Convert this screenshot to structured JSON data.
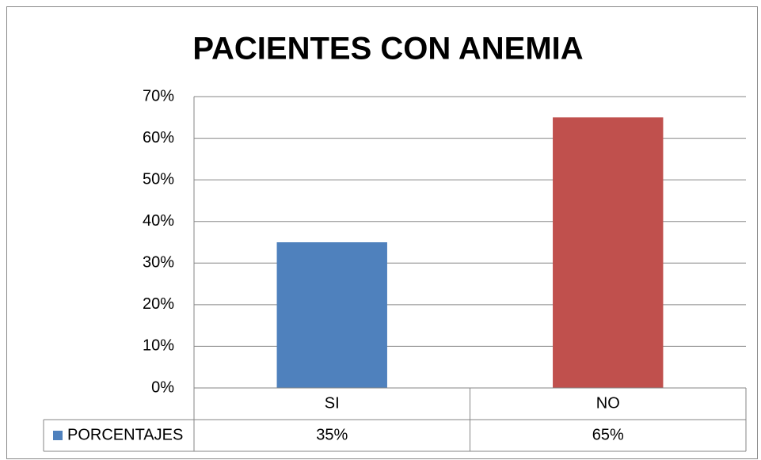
{
  "chart_data": {
    "type": "bar",
    "title": "PACIENTES CON ANEMIA",
    "categories": [
      "SI",
      "NO"
    ],
    "series": [
      {
        "name": "PORCENTAJES",
        "colors": [
          "#4f81bd",
          "#c0504d"
        ],
        "values": [
          35,
          65
        ],
        "value_labels": [
          "35%",
          "65%"
        ]
      }
    ],
    "ylim": [
      0,
      70
    ],
    "yticks": [
      {
        "value": 0,
        "label": "0%"
      },
      {
        "value": 10,
        "label": "10%"
      },
      {
        "value": 20,
        "label": "20%"
      },
      {
        "value": 30,
        "label": "30%"
      },
      {
        "value": 40,
        "label": "40%"
      },
      {
        "value": 50,
        "label": "50%"
      },
      {
        "value": 60,
        "label": "60%"
      },
      {
        "value": 70,
        "label": "70%"
      }
    ],
    "grid": true,
    "data_table": true
  }
}
